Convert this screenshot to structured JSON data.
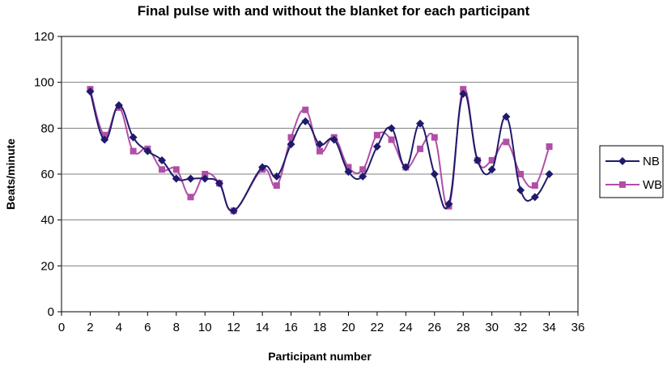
{
  "chart_data": {
    "type": "line",
    "title": "Final pulse with and without the blanket for each participant",
    "xlabel": "Participant number",
    "ylabel": "Beats/minute",
    "xlim": [
      0,
      36
    ],
    "ylim": [
      0,
      120
    ],
    "x_ticks": [
      0,
      2,
      4,
      6,
      8,
      10,
      12,
      14,
      16,
      18,
      20,
      22,
      24,
      26,
      28,
      30,
      32,
      34,
      36
    ],
    "y_ticks": [
      0,
      20,
      40,
      60,
      80,
      100,
      120
    ],
    "grid": "horizontal",
    "legend_position": "right",
    "x": [
      2,
      3,
      4,
      5,
      6,
      7,
      8,
      9,
      10,
      11,
      12,
      14,
      15,
      16,
      17,
      18,
      19,
      20,
      21,
      22,
      23,
      24,
      25,
      26,
      27,
      28,
      29,
      30,
      31,
      32,
      33,
      34
    ],
    "series": [
      {
        "name": "NB",
        "color": "#1f1a6b",
        "marker": "diamond",
        "values": [
          96,
          75,
          90,
          76,
          70,
          66,
          58,
          58,
          58,
          56,
          44,
          63,
          59,
          73,
          83,
          73,
          75,
          61,
          59,
          72,
          80,
          63,
          82,
          60,
          47,
          95,
          66,
          62,
          85,
          53,
          50,
          60
        ]
      },
      {
        "name": "WB",
        "color": "#b14ea8",
        "marker": "square",
        "values": [
          97,
          77,
          89,
          70,
          71,
          62,
          62,
          50,
          60,
          56,
          44,
          62,
          55,
          76,
          88,
          70,
          76,
          63,
          62,
          77,
          75,
          63,
          71,
          76,
          46,
          97,
          66,
          66,
          74,
          60,
          55,
          72
        ]
      }
    ]
  }
}
